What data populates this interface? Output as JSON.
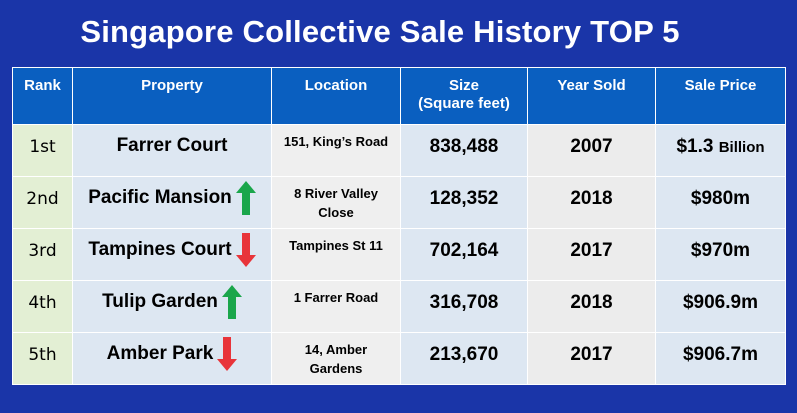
{
  "title": "Singapore Collective Sale History TOP 5",
  "colors": {
    "background": "#1a35a8",
    "header": "#0a5fc0",
    "up_arrow": "#1aa64b",
    "down_arrow": "#e8343a"
  },
  "columns": {
    "rank": "Rank",
    "property": "Property",
    "location": "Location",
    "size_line1": "Size",
    "size_line2": "(Square feet)",
    "year": "Year Sold",
    "price": "Sale Price"
  },
  "rows": [
    {
      "rank": "1st",
      "property": "Farrer Court",
      "trend": "none",
      "trend_icon": "",
      "location_line1": "151, King’s Road",
      "location_line2": "",
      "size": "838,488",
      "year": "2007",
      "price": "$1.3",
      "price_unit": "Billion"
    },
    {
      "rank": "2nd",
      "property": "Pacific Mansion",
      "trend": "up",
      "trend_icon": "green-up-arrow-icon",
      "location_line1": "8 River Valley",
      "location_line2": "Close",
      "size": "128,352",
      "year": "2018",
      "price": "$980m",
      "price_unit": ""
    },
    {
      "rank": "3rd",
      "property": "Tampines Court",
      "trend": "down",
      "trend_icon": "red-down-arrow-icon",
      "location_line1": "Tampines St 11",
      "location_line2": "",
      "size": "702,164",
      "year": "2017",
      "price": "$970m",
      "price_unit": ""
    },
    {
      "rank": "4th",
      "property": "Tulip Garden",
      "trend": "up",
      "trend_icon": "green-up-arrow-icon",
      "location_line1": "1 Farrer Road",
      "location_line2": "",
      "size": "316,708",
      "year": "2018",
      "price": "$906.9m",
      "price_unit": ""
    },
    {
      "rank": "5th",
      "property": "Amber Park",
      "trend": "down",
      "trend_icon": "red-down-arrow-icon",
      "location_line1": "14, Amber",
      "location_line2": "Gardens",
      "size": "213,670",
      "year": "2017",
      "price": "$906.7m",
      "price_unit": ""
    }
  ]
}
